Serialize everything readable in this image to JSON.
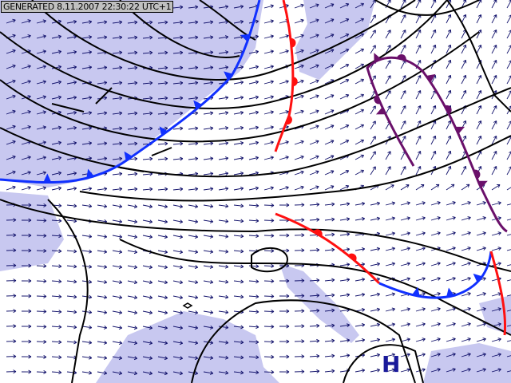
{
  "header": {
    "generated_label": "GENERATED 8.11.2007 22:30:22 UTC+1"
  },
  "pressure_labels": [
    {
      "text": "H"
    }
  ],
  "colors": {
    "sea": "#c8c8f0",
    "land": "#ffffff",
    "borders": "#d4a020",
    "isobars": "#000000",
    "wind_arrows": "#10106a",
    "cold_front": "#1030ff",
    "warm_front": "#ff1010",
    "occluded_front": "#6a106a",
    "high_label": "#1a1a9a"
  },
  "legend_items": []
}
